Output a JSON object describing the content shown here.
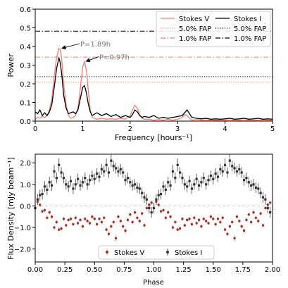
{
  "chart_data": [
    {
      "type": "line",
      "xlabel": "Frequency [hours⁻¹]",
      "ylabel": "Power",
      "xlim": [
        0,
        5
      ],
      "ylim": [
        0,
        0.6
      ],
      "xticks": [
        0,
        1,
        2,
        3,
        4,
        5
      ],
      "xtick_labels": [
        "0",
        "1",
        "2",
        "3",
        "4",
        "5"
      ],
      "yticks": [
        0.0,
        0.1,
        0.2,
        0.3,
        0.4,
        0.5,
        0.6
      ],
      "ytick_labels": [
        "0.0",
        "0.1",
        "0.2",
        "0.3",
        "0.4",
        "0.5",
        "0.6"
      ],
      "grid": false,
      "legend_position": "top-right",
      "series": [
        {
          "name": "Stokes V",
          "color": "#f08070",
          "style": "solid",
          "x": [
            0.0,
            0.05,
            0.1,
            0.15,
            0.2,
            0.25,
            0.3,
            0.35,
            0.4,
            0.45,
            0.5,
            0.53,
            0.56,
            0.6,
            0.65,
            0.7,
            0.75,
            0.8,
            0.85,
            0.9,
            0.95,
            1.0,
            1.04,
            1.08,
            1.12,
            1.16,
            1.2,
            1.3,
            1.4,
            1.5,
            1.6,
            1.7,
            1.8,
            1.9,
            2.0,
            2.05,
            2.1,
            2.15,
            2.2,
            2.25,
            2.3,
            2.4,
            2.5,
            2.6,
            2.7,
            2.8,
            2.9,
            3.0,
            3.1,
            3.15,
            3.2,
            3.25,
            3.3,
            3.4,
            3.5,
            3.6,
            3.7,
            3.8,
            3.9,
            4.0,
            4.1,
            4.2,
            4.3,
            4.4,
            4.5,
            4.6,
            4.7,
            4.8,
            4.9,
            5.0
          ],
          "y": [
            0.01,
            0.02,
            0.015,
            0.025,
            0.02,
            0.03,
            0.06,
            0.12,
            0.24,
            0.34,
            0.39,
            0.38,
            0.33,
            0.2,
            0.09,
            0.03,
            0.015,
            0.02,
            0.03,
            0.07,
            0.17,
            0.29,
            0.32,
            0.27,
            0.16,
            0.06,
            0.02,
            0.01,
            0.015,
            0.01,
            0.012,
            0.01,
            0.015,
            0.01,
            0.03,
            0.06,
            0.085,
            0.07,
            0.035,
            0.015,
            0.01,
            0.01,
            0.005,
            0.008,
            0.005,
            0.01,
            0.005,
            0.01,
            0.02,
            0.035,
            0.03,
            0.015,
            0.005,
            0.008,
            0.005,
            0.006,
            0.004,
            0.005,
            0.004,
            0.005,
            0.006,
            0.004,
            0.005,
            0.006,
            0.005,
            0.004,
            0.005,
            0.006,
            0.005,
            0.005
          ]
        },
        {
          "name": "Stokes I",
          "color": "#000000",
          "style": "solid",
          "x": [
            0.0,
            0.05,
            0.1,
            0.15,
            0.2,
            0.25,
            0.3,
            0.35,
            0.4,
            0.45,
            0.5,
            0.53,
            0.56,
            0.6,
            0.65,
            0.7,
            0.75,
            0.8,
            0.85,
            0.9,
            0.95,
            1.0,
            1.04,
            1.08,
            1.12,
            1.16,
            1.2,
            1.3,
            1.4,
            1.5,
            1.6,
            1.7,
            1.8,
            1.9,
            2.0,
            2.05,
            2.1,
            2.15,
            2.2,
            2.25,
            2.3,
            2.4,
            2.5,
            2.6,
            2.7,
            2.8,
            2.9,
            3.0,
            3.1,
            3.15,
            3.2,
            3.25,
            3.3,
            3.4,
            3.5,
            3.6,
            3.7,
            3.8,
            3.9,
            4.0,
            4.1,
            4.2,
            4.3,
            4.4,
            4.5,
            4.6,
            4.7,
            4.8,
            4.9,
            5.0
          ],
          "y": [
            0.05,
            0.04,
            0.06,
            0.03,
            0.045,
            0.03,
            0.05,
            0.09,
            0.18,
            0.28,
            0.34,
            0.31,
            0.25,
            0.14,
            0.07,
            0.04,
            0.045,
            0.05,
            0.04,
            0.06,
            0.12,
            0.18,
            0.19,
            0.15,
            0.09,
            0.05,
            0.03,
            0.045,
            0.03,
            0.04,
            0.025,
            0.035,
            0.02,
            0.03,
            0.02,
            0.035,
            0.06,
            0.05,
            0.03,
            0.02,
            0.025,
            0.02,
            0.03,
            0.015,
            0.02,
            0.015,
            0.02,
            0.025,
            0.03,
            0.045,
            0.06,
            0.04,
            0.02,
            0.015,
            0.012,
            0.015,
            0.01,
            0.012,
            0.01,
            0.012,
            0.015,
            0.01,
            0.012,
            0.015,
            0.01,
            0.012,
            0.015,
            0.01,
            0.012,
            0.01
          ]
        }
      ],
      "reference_lines": [
        {
          "label": "5.0% FAP",
          "series": "Stokes V",
          "y": 0.208,
          "color": "#f08070",
          "style": "dotted"
        },
        {
          "label": "1.0% FAP",
          "series": "Stokes V",
          "y": 0.343,
          "color": "#f08070",
          "style": "dashdot"
        },
        {
          "label": "5.0% FAP",
          "series": "Stokes I",
          "y": 0.238,
          "color": "#000000",
          "style": "dotted"
        },
        {
          "label": "1.0% FAP",
          "series": "Stokes I",
          "y": 0.482,
          "color": "#000000",
          "style": "dashdot"
        }
      ],
      "annotations": [
        {
          "text": "P=1.89h",
          "x": 0.53,
          "y": 0.39,
          "text_x": 0.95,
          "text_y": 0.4
        },
        {
          "text": "P=0.97h",
          "x": 1.04,
          "y": 0.32,
          "text_x": 1.35,
          "text_y": 0.33
        }
      ]
    },
    {
      "type": "scatter",
      "xlabel": "Phase",
      "ylabel": "Flux Density [mJy beam⁻¹]",
      "xlim": [
        0,
        2
      ],
      "ylim": [
        -2.6,
        2.4
      ],
      "xticks": [
        0.0,
        0.25,
        0.5,
        0.75,
        1.0,
        1.25,
        1.5,
        1.75,
        2.0
      ],
      "xtick_labels": [
        "0.00",
        "0.25",
        "0.50",
        "0.75",
        "1.00",
        "1.25",
        "1.50",
        "1.75",
        "2.00"
      ],
      "yticks": [
        -2.0,
        -1.0,
        0.0,
        1.0,
        2.0
      ],
      "ytick_labels": [
        "−2.0",
        "−1.0",
        "0.0",
        "1.0",
        "2.0"
      ],
      "grid": false,
      "legend_position": "bottom-center",
      "zero_line": {
        "y": 0.0,
        "color": "#cccccc",
        "style": "dashed"
      },
      "series": [
        {
          "name": "Stokes V",
          "color": "#a0302a",
          "err_color": "#f0a090",
          "marker": "circle",
          "phase": [
            0.0,
            0.02,
            0.04,
            0.06,
            0.08,
            0.1,
            0.12,
            0.14,
            0.16,
            0.18,
            0.2,
            0.22,
            0.24,
            0.26,
            0.28,
            0.3,
            0.32,
            0.34,
            0.36,
            0.38,
            0.4,
            0.42,
            0.44,
            0.46,
            0.48,
            0.5,
            0.52,
            0.54,
            0.56,
            0.58,
            0.6,
            0.62,
            0.64,
            0.66,
            0.68,
            0.7,
            0.72,
            0.74,
            0.76,
            0.78,
            0.8,
            0.82,
            0.84,
            0.86,
            0.88,
            0.9,
            0.92,
            0.94,
            0.96,
            0.98
          ],
          "y": [
            -0.1,
            0.2,
            0.05,
            -0.25,
            -0.2,
            -0.55,
            -0.3,
            -0.5,
            -1.0,
            -0.75,
            -1.1,
            -1.05,
            -0.6,
            -0.9,
            -0.65,
            -0.6,
            -0.85,
            -0.55,
            -0.8,
            -0.65,
            -0.95,
            -0.6,
            -0.7,
            -0.8,
            -0.5,
            -0.6,
            -0.85,
            -0.6,
            -0.75,
            -0.55,
            -1.1,
            -1.3,
            -0.95,
            -0.75,
            -1.5,
            -0.5,
            -0.7,
            -0.95,
            -1.15,
            -0.65,
            -0.4,
            -0.75,
            -0.3,
            -0.55,
            -0.7,
            -0.35,
            -0.9,
            -0.1,
            0.05,
            0.15
          ],
          "err": [
            0.1,
            0.1,
            0.1,
            0.1,
            0.1,
            0.1,
            0.1,
            0.1,
            0.12,
            0.1,
            0.12,
            0.12,
            0.1,
            0.1,
            0.1,
            0.1,
            0.1,
            0.1,
            0.1,
            0.1,
            0.1,
            0.1,
            0.1,
            0.1,
            0.1,
            0.1,
            0.1,
            0.1,
            0.1,
            0.1,
            0.12,
            0.12,
            0.1,
            0.1,
            0.15,
            0.1,
            0.1,
            0.1,
            0.12,
            0.1,
            0.1,
            0.1,
            0.1,
            0.1,
            0.1,
            0.1,
            0.1,
            0.1,
            0.1,
            0.1
          ]
        },
        {
          "name": "Stokes I",
          "color": "#333333",
          "err_color": "#555555",
          "marker": "square",
          "phase": [
            0.0,
            0.02,
            0.04,
            0.06,
            0.08,
            0.1,
            0.12,
            0.14,
            0.16,
            0.18,
            0.2,
            0.22,
            0.24,
            0.26,
            0.28,
            0.3,
            0.32,
            0.34,
            0.36,
            0.38,
            0.4,
            0.42,
            0.44,
            0.46,
            0.48,
            0.5,
            0.52,
            0.54,
            0.56,
            0.58,
            0.6,
            0.62,
            0.64,
            0.66,
            0.68,
            0.7,
            0.72,
            0.74,
            0.76,
            0.78,
            0.8,
            0.82,
            0.84,
            0.86,
            0.88,
            0.9,
            0.92,
            0.94,
            0.96,
            0.98
          ],
          "y": [
            -0.1,
            0.3,
            0.5,
            0.55,
            0.9,
            0.75,
            1.1,
            0.95,
            1.6,
            1.3,
            1.9,
            1.55,
            1.3,
            1.0,
            0.9,
            1.15,
            0.8,
            1.0,
            1.25,
            0.95,
            1.1,
            1.3,
            1.0,
            1.2,
            1.4,
            1.25,
            1.5,
            1.35,
            1.7,
            1.6,
            1.9,
            1.55,
            2.1,
            1.85,
            1.75,
            1.6,
            1.7,
            1.55,
            1.2,
            1.3,
            1.1,
            0.95,
            1.0,
            0.85,
            0.8,
            0.6,
            0.4,
            0.3,
            -0.1,
            -0.3
          ],
          "err": [
            0.25,
            0.25,
            0.25,
            0.25,
            0.25,
            0.25,
            0.25,
            0.25,
            0.3,
            0.25,
            0.3,
            0.25,
            0.25,
            0.25,
            0.25,
            0.25,
            0.25,
            0.25,
            0.25,
            0.25,
            0.25,
            0.25,
            0.25,
            0.25,
            0.25,
            0.25,
            0.25,
            0.25,
            0.25,
            0.25,
            0.3,
            0.25,
            0.3,
            0.25,
            0.25,
            0.25,
            0.25,
            0.25,
            0.25,
            0.25,
            0.25,
            0.25,
            0.25,
            0.25,
            0.25,
            0.25,
            0.25,
            0.25,
            0.25,
            0.25
          ]
        }
      ]
    }
  ]
}
